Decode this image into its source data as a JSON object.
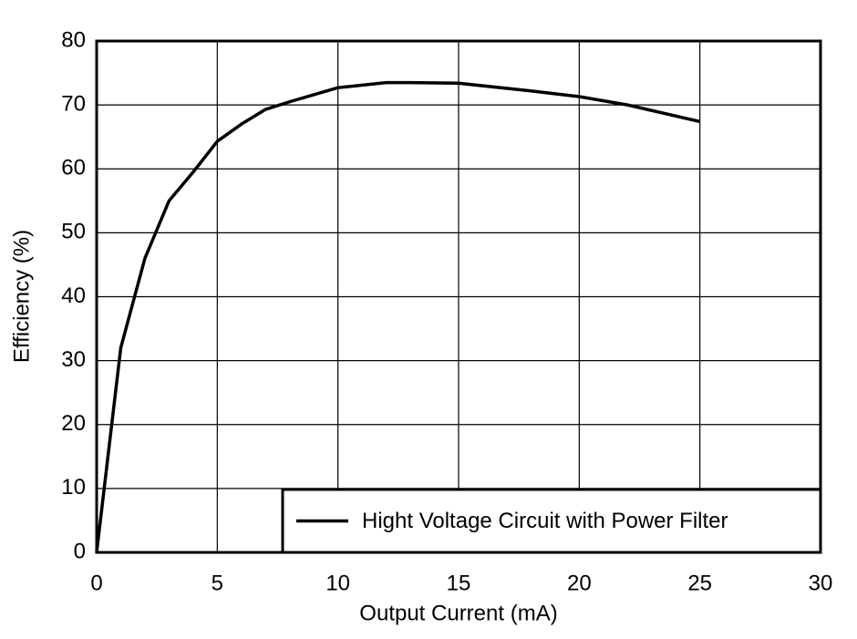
{
  "chart_data": {
    "type": "line",
    "x_label": "Output Current (mA)",
    "y_label": "Efficiency (%)",
    "series": [
      {
        "name": "Hight Voltage Circuit with Power Filter",
        "color": "#000000",
        "x": [
          0,
          1,
          2,
          3,
          4,
          5,
          6,
          7,
          8,
          10,
          12,
          13,
          15,
          18,
          20,
          22,
          25
        ],
        "values": [
          0,
          32,
          46,
          55,
          59.5,
          64.3,
          67,
          69.3,
          70.5,
          72.7,
          73.5,
          73.5,
          73.4,
          72.2,
          71.3,
          70,
          67.4
        ]
      }
    ],
    "xlim": [
      0,
      30
    ],
    "xticks": [
      0,
      5,
      10,
      15,
      20,
      25,
      30
    ],
    "ylim": [
      0,
      80
    ],
    "yticks": [
      0,
      10,
      20,
      30,
      40,
      50,
      60,
      70,
      80
    ],
    "grid": true,
    "legend": "lower right"
  }
}
